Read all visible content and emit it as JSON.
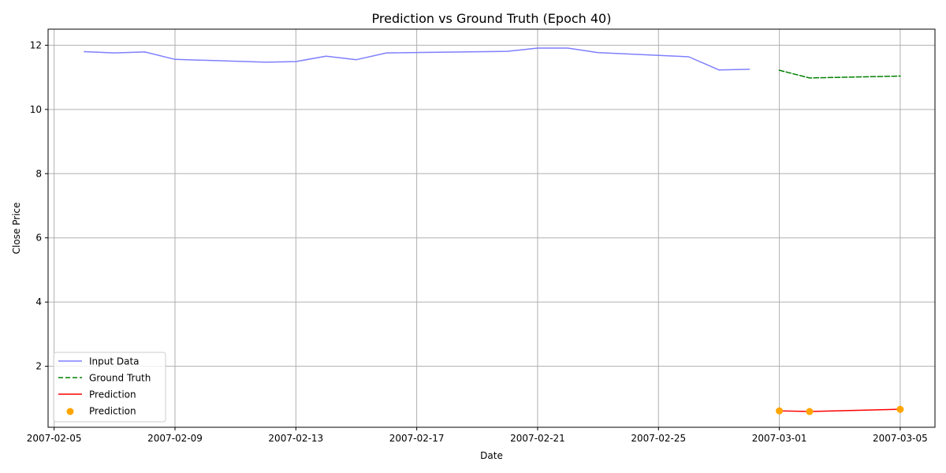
{
  "chart_data": {
    "type": "line",
    "title": "Prediction vs Ground Truth (Epoch 40)",
    "xlabel": "Date",
    "ylabel": "Close Price",
    "xlim": [
      "2007-02-04T19:12",
      "2007-03-06T03:36"
    ],
    "ylim": [
      0.1,
      12.5
    ],
    "x_ticks": [
      "2007-02-05",
      "2007-02-09",
      "2007-02-13",
      "2007-02-17",
      "2007-02-21",
      "2007-02-25",
      "2007-03-01",
      "2007-03-05"
    ],
    "y_ticks": [
      2,
      4,
      6,
      8,
      10,
      12
    ],
    "grid": true,
    "legend_position": "lower-left",
    "series": [
      {
        "name": "Input Data",
        "kind": "line",
        "style": "solid",
        "color": "#7f7fff",
        "points": [
          {
            "x": "2007-02-06",
            "y": 11.8
          },
          {
            "x": "2007-02-07",
            "y": 11.76
          },
          {
            "x": "2007-02-08",
            "y": 11.79
          },
          {
            "x": "2007-02-09",
            "y": 11.56
          },
          {
            "x": "2007-02-12",
            "y": 11.47
          },
          {
            "x": "2007-02-13",
            "y": 11.49
          },
          {
            "x": "2007-02-14",
            "y": 11.66
          },
          {
            "x": "2007-02-15",
            "y": 11.55
          },
          {
            "x": "2007-02-16",
            "y": 11.76
          },
          {
            "x": "2007-02-20",
            "y": 11.81
          },
          {
            "x": "2007-02-21",
            "y": 11.91
          },
          {
            "x": "2007-02-22",
            "y": 11.91
          },
          {
            "x": "2007-02-23",
            "y": 11.77
          },
          {
            "x": "2007-02-26",
            "y": 11.64
          },
          {
            "x": "2007-02-27",
            "y": 11.23
          },
          {
            "x": "2007-02-28",
            "y": 11.25
          }
        ]
      },
      {
        "name": "Ground Truth",
        "kind": "line",
        "style": "dashed",
        "color": "#008000",
        "points": [
          {
            "x": "2007-03-01",
            "y": 11.22
          },
          {
            "x": "2007-03-02",
            "y": 10.98
          },
          {
            "x": "2007-03-05",
            "y": 11.04
          }
        ]
      },
      {
        "name": "Prediction",
        "kind": "line",
        "style": "solid",
        "color": "#ff0000",
        "points": [
          {
            "x": "2007-03-01",
            "y": 0.61
          },
          {
            "x": "2007-03-02",
            "y": 0.59
          },
          {
            "x": "2007-03-05",
            "y": 0.66
          }
        ]
      },
      {
        "name": "Prediction",
        "kind": "scatter",
        "style": "marker",
        "color": "#ffa500",
        "points": [
          {
            "x": "2007-03-01",
            "y": 0.61
          },
          {
            "x": "2007-03-02",
            "y": 0.59
          },
          {
            "x": "2007-03-05",
            "y": 0.66
          }
        ]
      }
    ]
  }
}
